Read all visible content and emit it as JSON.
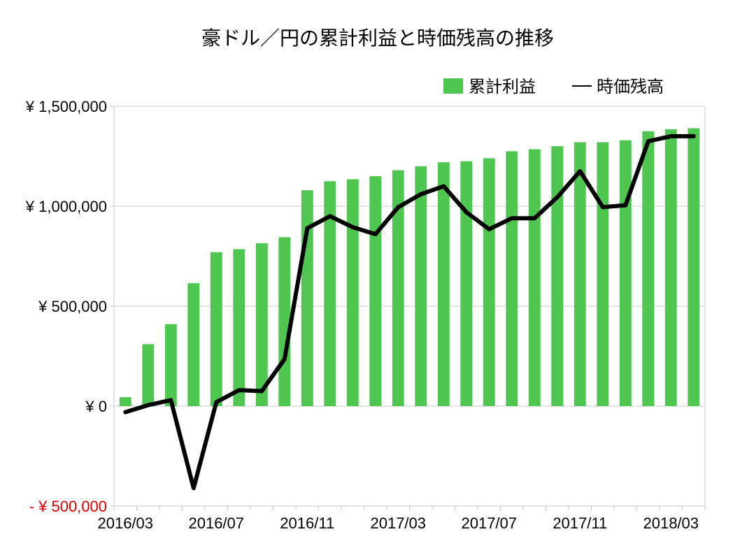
{
  "chart_data": {
    "type": "bar",
    "title": "豪ドル／円の累計利益と時価残高の推移",
    "x": [
      "2016/03",
      "2016/04",
      "2016/05",
      "2016/06",
      "2016/07",
      "2016/08",
      "2016/09",
      "2016/10",
      "2016/11",
      "2016/12",
      "2017/01",
      "2017/02",
      "2017/03",
      "2017/04",
      "2017/05",
      "2017/06",
      "2017/07",
      "2017/08",
      "2017/09",
      "2017/10",
      "2017/11",
      "2017/12",
      "2018/01",
      "2018/02",
      "2018/03",
      "2018/04"
    ],
    "x_tick_labels": [
      "2016/03",
      "2016/07",
      "2016/11",
      "2017/03",
      "2017/07",
      "2017/11",
      "2018/03"
    ],
    "y_tick_labels": [
      "¥ 1,500,000",
      "¥ 1,000,000",
      "¥ 500,000",
      "¥ 0",
      "- ¥ 500,000"
    ],
    "y_ticks": [
      1500000,
      1000000,
      500000,
      0,
      -500000
    ],
    "ylim": [
      -500000,
      1500000
    ],
    "grid": true,
    "legend_position": "top-right",
    "series": [
      {
        "name": "累計利益",
        "kind": "bar",
        "color": "#4fc64f",
        "values": [
          45000,
          310000,
          410000,
          615000,
          770000,
          785000,
          815000,
          845000,
          1080000,
          1125000,
          1135000,
          1150000,
          1180000,
          1200000,
          1220000,
          1225000,
          1240000,
          1275000,
          1285000,
          1300000,
          1320000,
          1320000,
          1330000,
          1375000,
          1385000,
          1390000
        ]
      },
      {
        "name": "時価残高",
        "kind": "line",
        "color": "#000000",
        "values": [
          -30000,
          5000,
          30000,
          -410000,
          20000,
          80000,
          75000,
          235000,
          890000,
          950000,
          895000,
          860000,
          995000,
          1060000,
          1100000,
          970000,
          885000,
          940000,
          940000,
          1045000,
          1175000,
          995000,
          1005000,
          1325000,
          1350000,
          1350000
        ]
      }
    ]
  }
}
